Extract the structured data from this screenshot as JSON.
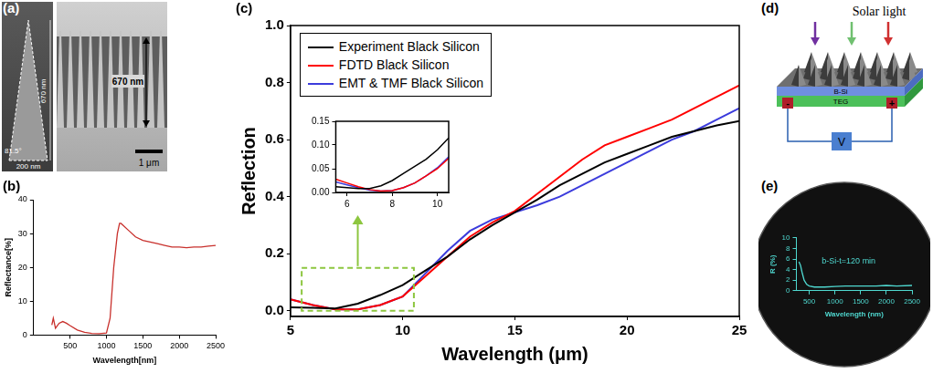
{
  "panel_labels": [
    "(a)",
    "(b)",
    "(c)",
    "(d)",
    "(e)"
  ],
  "sem_image": {
    "pyramid_height": "670 nm",
    "apex_angle": "81.5°",
    "base_width": "200 nm",
    "layer_depth": "670 nm",
    "scale_bar": "1 μm"
  },
  "device_diagram": {
    "light": "Solar light",
    "top_layer": "B-Si",
    "bottom_layer": "TEG",
    "negative": "-",
    "positive": "+",
    "meter": "V"
  },
  "chart_data": [
    {
      "type": "line",
      "x_label": "Wavelength[nm]",
      "y_label": "Reflectance[%]",
      "x": [
        250,
        270,
        300,
        350,
        400,
        450,
        500,
        600,
        700,
        800,
        900,
        1000,
        1050,
        1100,
        1150,
        1180,
        1200,
        1300,
        1400,
        1500,
        1600,
        1700,
        1800,
        1900,
        2000,
        2100,
        2200,
        2300,
        2400,
        2500
      ],
      "series": [
        {
          "color": "#c8302c",
          "values": [
            3,
            5,
            2,
            3.5,
            4,
            3.5,
            2.8,
            1.5,
            0.8,
            0.5,
            0.4,
            0.6,
            5,
            20,
            30,
            33,
            33,
            31,
            29,
            28,
            27.5,
            27,
            26.5,
            26,
            26,
            25.8,
            26,
            26,
            26.3,
            26.5
          ]
        }
      ],
      "xlim": [
        0,
        2500
      ],
      "xticks": [
        500,
        1000,
        1500,
        2000,
        2500
      ],
      "ylim": [
        0,
        40
      ],
      "yticks": [
        0,
        10,
        20,
        30,
        40
      ],
      "grid": false
    },
    {
      "type": "line",
      "x_label": "Wavelength (μm)",
      "y_label": "Reflection",
      "x": [
        5,
        6,
        7,
        8,
        9,
        10,
        11,
        12,
        13,
        14,
        15,
        16,
        17,
        18,
        19,
        20,
        21,
        22,
        23,
        24,
        25
      ],
      "series": [
        {
          "name": "Experiment Black Silicon",
          "color": "#000000",
          "values": [
            0.012,
            0.01,
            0.008,
            0.025,
            0.055,
            0.09,
            0.14,
            0.19,
            0.25,
            0.3,
            0.345,
            0.39,
            0.44,
            0.48,
            0.52,
            0.55,
            0.58,
            0.61,
            0.63,
            0.65,
            0.665
          ]
        },
        {
          "name": "FDTD Black Silicon",
          "color": "#ff0000",
          "values": [
            0.04,
            0.02,
            0.005,
            0.005,
            0.02,
            0.05,
            0.12,
            0.19,
            0.26,
            0.31,
            0.35,
            0.41,
            0.47,
            0.53,
            0.58,
            0.61,
            0.64,
            0.67,
            0.71,
            0.75,
            0.79
          ]
        },
        {
          "name": "EMT & TMF Black Silicon",
          "color": "#3c3cdc",
          "values": [
            0.04,
            0.02,
            0.005,
            0.005,
            0.02,
            0.05,
            0.13,
            0.21,
            0.28,
            0.32,
            0.345,
            0.37,
            0.4,
            0.44,
            0.48,
            0.52,
            0.56,
            0.6,
            0.63,
            0.67,
            0.71
          ]
        }
      ],
      "xlim": [
        5,
        25
      ],
      "xticks": [
        5,
        10,
        15,
        20,
        25
      ],
      "ylim": [
        -0.02,
        1.0
      ],
      "yticks": [
        {
          "value": 0,
          "label": "0.0"
        },
        {
          "value": 0.2,
          "label": "0.2"
        },
        {
          "value": 0.4,
          "label": "0.4"
        },
        {
          "value": 0.6,
          "label": "0.6"
        },
        {
          "value": 0.8,
          "label": "0.8"
        },
        {
          "value": 1.0,
          "label": "1.0"
        }
      ],
      "grid": false,
      "legend": "upper left"
    },
    {
      "type": "line",
      "x": [
        5.5,
        6,
        6.5,
        7,
        7.5,
        8,
        8.5,
        9,
        9.5,
        10,
        10.5
      ],
      "series": [
        {
          "color": "#000000",
          "values": [
            0.012,
            0.01,
            0.008,
            0.008,
            0.014,
            0.025,
            0.04,
            0.055,
            0.07,
            0.09,
            0.115
          ]
        },
        {
          "color": "#ff0000",
          "values": [
            0.028,
            0.02,
            0.012,
            0.006,
            0.003,
            0.004,
            0.01,
            0.02,
            0.035,
            0.05,
            0.072
          ]
        },
        {
          "color": "#3c3cdc",
          "values": [
            0.022,
            0.016,
            0.01,
            0.005,
            0.003,
            0.004,
            0.01,
            0.02,
            0.035,
            0.052,
            0.075
          ]
        }
      ],
      "xlim": [
        5.5,
        10.5
      ],
      "xticks": [
        6,
        8,
        10
      ],
      "ylim": [
        0,
        0.15
      ],
      "yticks": [
        {
          "value": 0,
          "label": "0.00"
        },
        {
          "value": 0.05,
          "label": "0.05"
        },
        {
          "value": 0.1,
          "label": "0.10"
        },
        {
          "value": 0.15,
          "label": "0.15"
        }
      ],
      "grid": false
    },
    {
      "type": "line",
      "x_label": "Wavelength (nm)",
      "y_label": "R (%)",
      "annotations": [
        "b-Si-t=120 min"
      ],
      "x": [
        300,
        330,
        360,
        400,
        450,
        500,
        600,
        800,
        1000,
        1200,
        1500,
        1800,
        2000,
        2200,
        2500
      ],
      "series": [
        {
          "color": "#4fd8d0",
          "values": [
            5.5,
            4.8,
            3.5,
            2,
            1.2,
            0.9,
            0.7,
            0.7,
            0.8,
            0.9,
            0.9,
            0.9,
            1,
            0.9,
            1
          ]
        }
      ],
      "xlim": [
        250,
        2500
      ],
      "xticks": [
        500,
        1000,
        1500,
        2000,
        2500
      ],
      "ylim": [
        0,
        10
      ],
      "yticks": [
        0,
        2,
        4,
        6,
        8,
        10
      ],
      "grid": false
    }
  ]
}
